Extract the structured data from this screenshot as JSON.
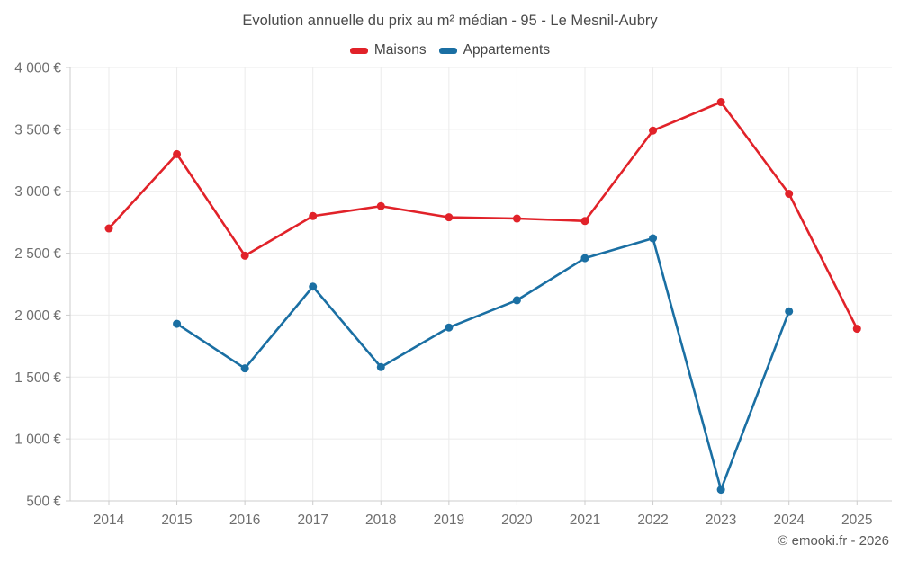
{
  "title": "Evolution annuelle du prix au m² médian - 95 - Le Mesnil-Aubry",
  "footer": "© emooki.fr - 2026",
  "colors": {
    "maisons": "#e12229",
    "appartements": "#1a6fa3",
    "grid": "#ebebeb",
    "axis": "#cccccc",
    "tick_text": "#6e6e6e"
  },
  "chart_data": {
    "type": "line",
    "x": [
      2014,
      2015,
      2016,
      2017,
      2018,
      2019,
      2020,
      2021,
      2022,
      2023,
      2024,
      2025
    ],
    "series": [
      {
        "name": "Maisons",
        "color": "#e12229",
        "values": [
          2700,
          3300,
          2480,
          2800,
          2880,
          2790,
          2780,
          2760,
          3490,
          3720,
          2980,
          1890
        ]
      },
      {
        "name": "Appartements",
        "color": "#1a6fa3",
        "values": [
          null,
          1930,
          1570,
          2230,
          1580,
          1900,
          2120,
          2460,
          2620,
          590,
          2030,
          null
        ]
      }
    ],
    "title": "Evolution annuelle du prix au m² médian - 95 - Le Mesnil-Aubry",
    "xlabel": "",
    "ylabel": "",
    "ylim": [
      500,
      4000
    ],
    "ytick_step": 500,
    "ytick_suffix": " €",
    "grid": true,
    "legend_position": "top"
  }
}
